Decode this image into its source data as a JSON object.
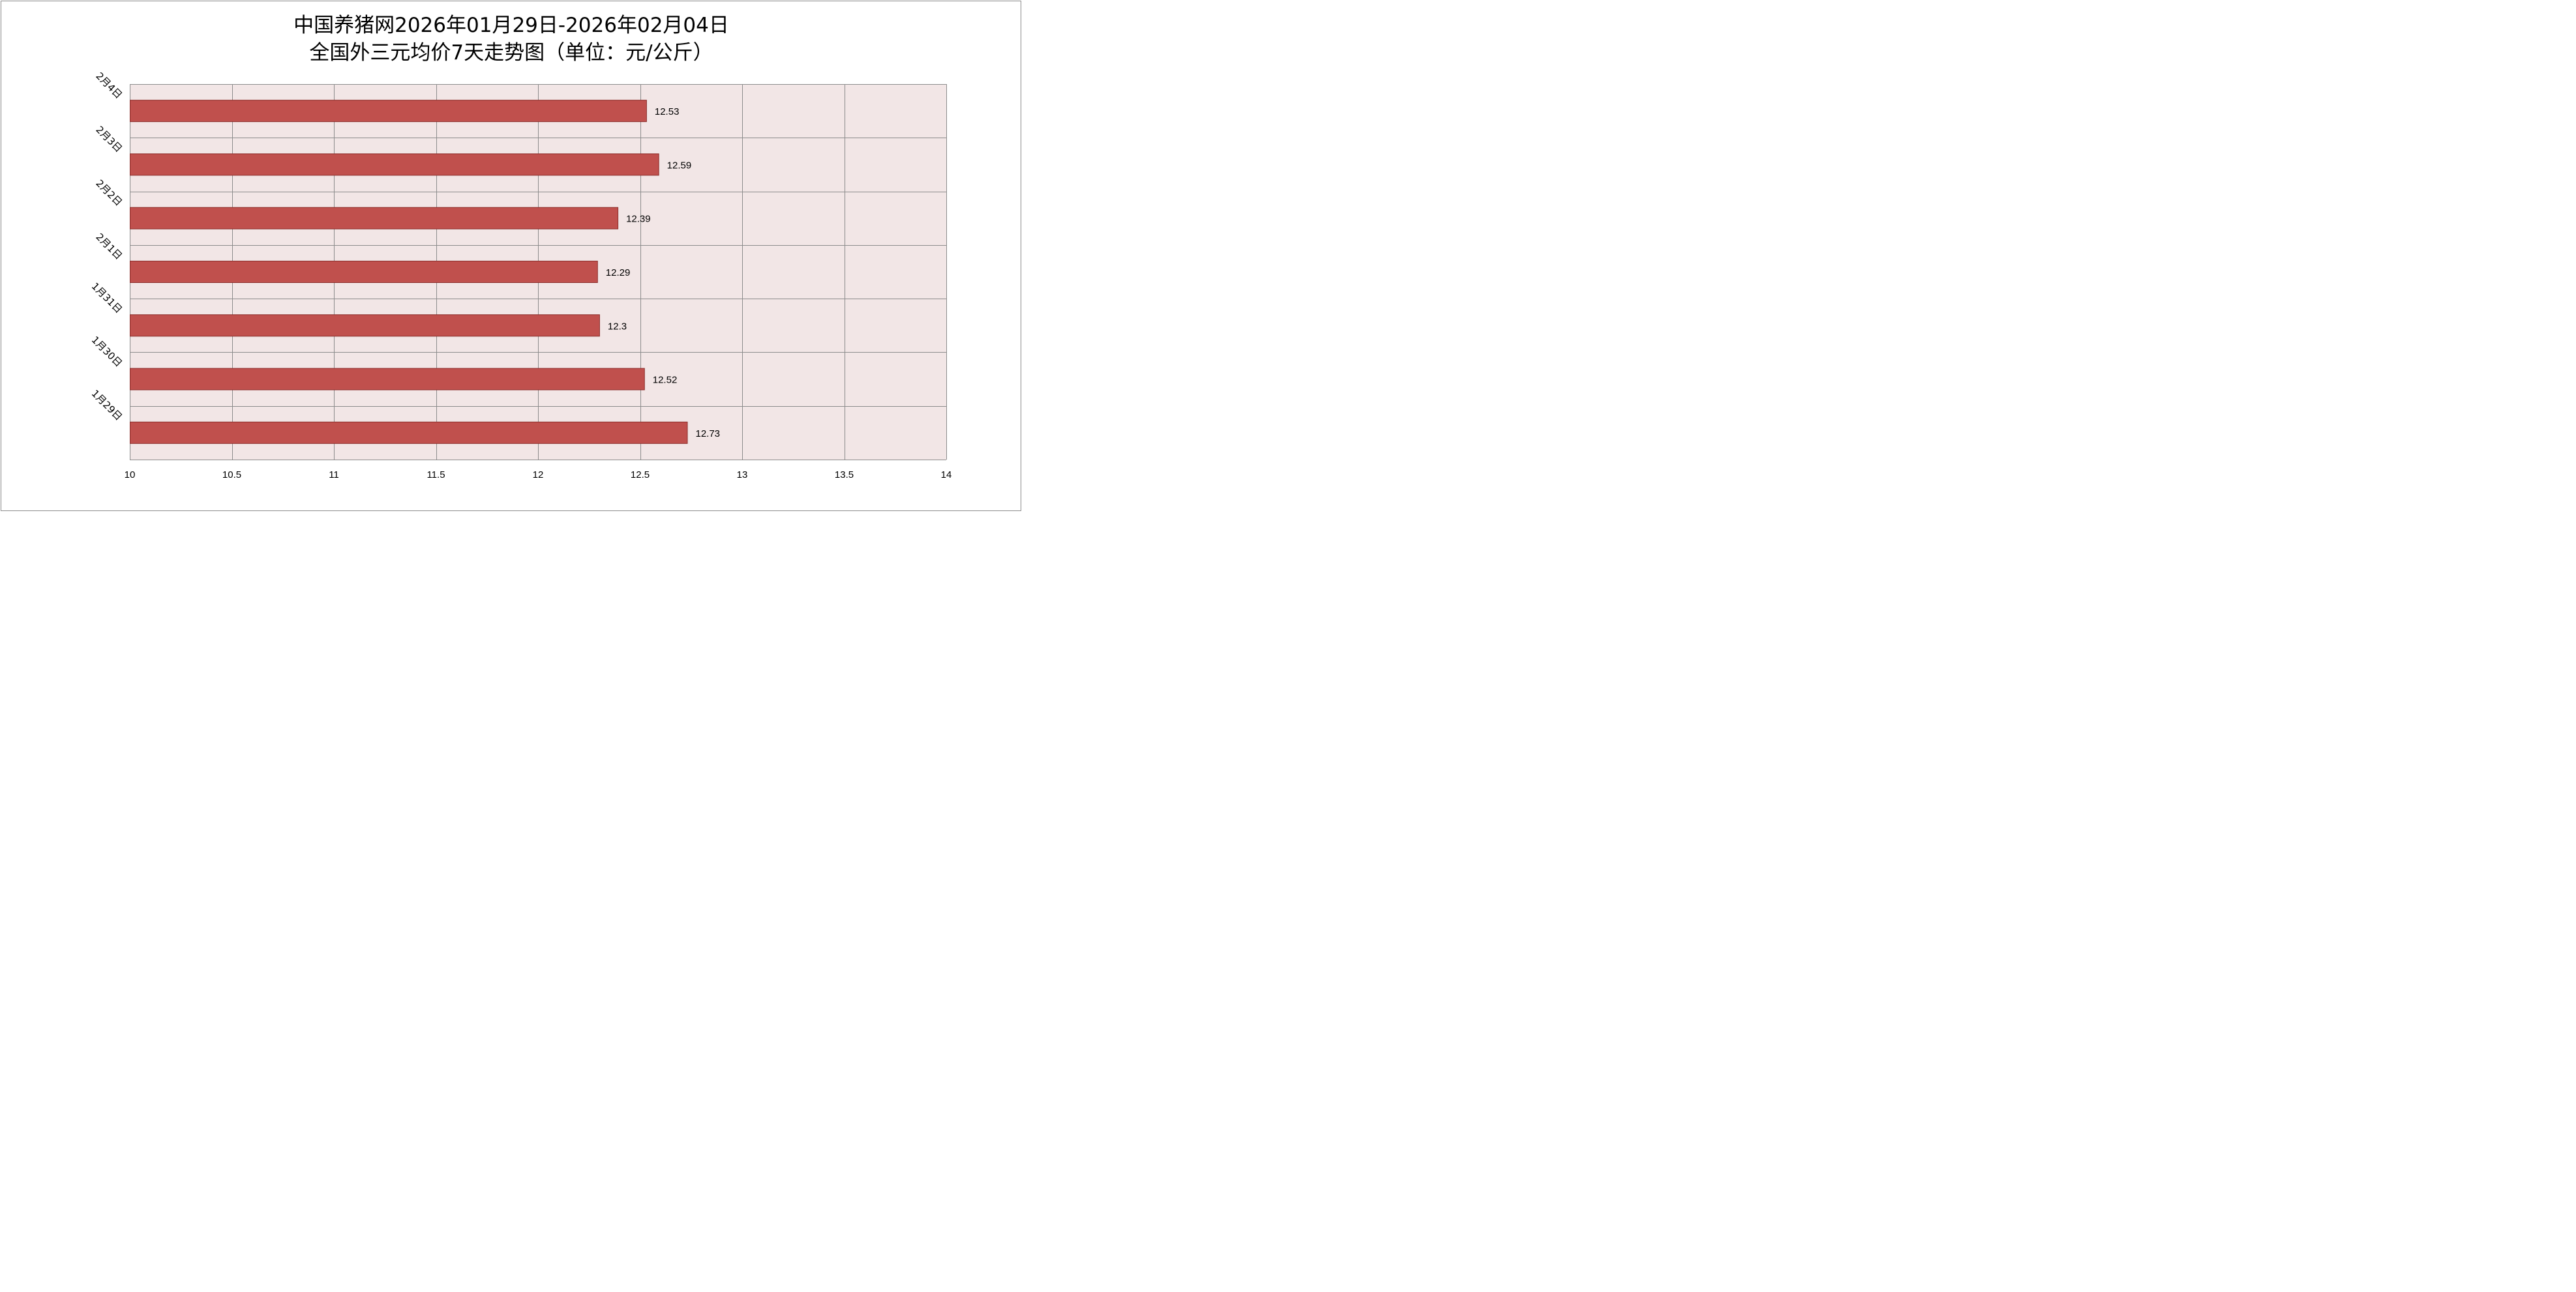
{
  "chart_data": {
    "type": "bar",
    "orientation": "horizontal",
    "title": "中国养猪网2026年01月29日-2026年02月04日",
    "subtitle": "全国外三元均价7天走势图（单位：元/公斤）",
    "categories": [
      "2月4日",
      "2月3日",
      "2月2日",
      "2月1日",
      "1月31日",
      "1月30日",
      "1月29日"
    ],
    "values": [
      12.53,
      12.59,
      12.39,
      12.29,
      12.3,
      12.52,
      12.73
    ],
    "value_labels": [
      "12.53",
      "12.59",
      "12.39",
      "12.29",
      "12.3",
      "12.52",
      "12.73"
    ],
    "xlim": [
      10,
      14
    ],
    "x_ticks": [
      "10",
      "10.5",
      "11",
      "11.5",
      "12",
      "12.5",
      "13",
      "13.5",
      "14"
    ],
    "grid": true,
    "legend": "none",
    "colors": {
      "bar_fill": "#c0504d",
      "bar_stroke": "#8b2e2b",
      "plot_background": "#f2e6e6",
      "grid": "#8c8c8c"
    }
  }
}
